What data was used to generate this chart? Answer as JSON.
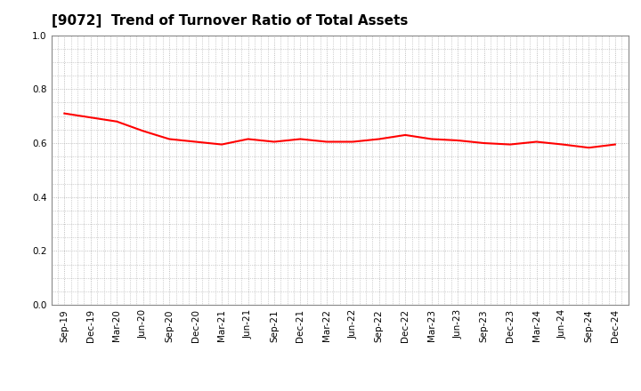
{
  "title": "[9072]  Trend of Turnover Ratio of Total Assets",
  "x_labels": [
    "Sep-19",
    "Dec-19",
    "Mar-20",
    "Jun-20",
    "Sep-20",
    "Dec-20",
    "Mar-21",
    "Jun-21",
    "Sep-21",
    "Dec-21",
    "Mar-22",
    "Jun-22",
    "Sep-22",
    "Dec-22",
    "Mar-23",
    "Jun-23",
    "Sep-23",
    "Dec-23",
    "Mar-24",
    "Jun-24",
    "Sep-24",
    "Dec-24"
  ],
  "y_values": [
    0.71,
    0.695,
    0.68,
    0.645,
    0.615,
    0.605,
    0.595,
    0.615,
    0.605,
    0.615,
    0.605,
    0.605,
    0.615,
    0.63,
    0.615,
    0.61,
    0.6,
    0.595,
    0.605,
    0.595,
    0.583,
    0.595
  ],
  "line_color": "#ff0000",
  "line_width": 1.5,
  "ylim": [
    0.0,
    1.0
  ],
  "yticks": [
    0.0,
    0.2,
    0.4,
    0.6,
    0.8,
    1.0
  ],
  "background_color": "#ffffff",
  "grid_color": "#aaaaaa",
  "title_fontsize": 11,
  "tick_fontsize": 7.5
}
